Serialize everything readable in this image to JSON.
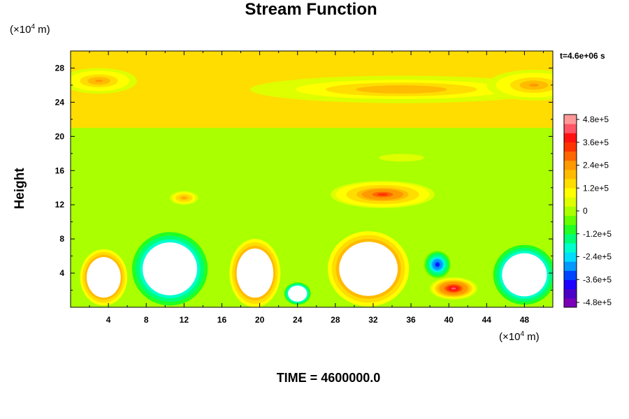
{
  "chart_data": {
    "type": "heatmap",
    "title": "Stream Function",
    "ylabel": "Height",
    "x_unit": {
      "prefix": "(×10",
      "exp": "4",
      "suffix": " m)"
    },
    "y_unit": {
      "prefix": "(×10",
      "exp": "4",
      "suffix": " m)"
    },
    "xlim": [
      0,
      51
    ],
    "ylim": [
      0,
      30
    ],
    "xticks": [
      4,
      8,
      12,
      16,
      20,
      24,
      28,
      32,
      36,
      40,
      44,
      48
    ],
    "yticks": [
      4,
      8,
      12,
      16,
      20,
      24,
      28
    ],
    "time_annotation": "t=4.6e+06 s",
    "colorbar": {
      "min": -480000,
      "max": 480000,
      "labels": [
        "4.8e+5",
        "3.6e+5",
        "2.4e+5",
        "1.2e+5",
        "0",
        "-1.2e+5",
        "-2.4e+5",
        "-3.6e+5",
        "-4.8e+5"
      ],
      "colors": [
        "#7a00b8",
        "#4b00c8",
        "#1d00ff",
        "#0044ff",
        "#0099ff",
        "#00ddff",
        "#00ffcc",
        "#00ff77",
        "#22ff22",
        "#66ff00",
        "#aaff00",
        "#ddff00",
        "#ffff00",
        "#ffdd00",
        "#ffbb00",
        "#ff9900",
        "#ff6600",
        "#ff3300",
        "#ff1111",
        "#ff5566",
        "#ff9999"
      ]
    },
    "background_value": 0,
    "features": [
      {
        "x": 3.5,
        "y": 3.5,
        "rx": 2.5,
        "ry": 3.3,
        "value": 480000,
        "saturated": true
      },
      {
        "x": 10.5,
        "y": 4.5,
        "rx": 4.0,
        "ry": 4.3,
        "value": -480000,
        "saturated": true
      },
      {
        "x": 19.5,
        "y": 4.0,
        "rx": 2.7,
        "ry": 4.0,
        "value": 480000,
        "saturated": true
      },
      {
        "x": 24.0,
        "y": 1.6,
        "rx": 1.4,
        "ry": 1.3,
        "value": -480000,
        "saturated": true
      },
      {
        "x": 31.5,
        "y": 4.5,
        "rx": 4.3,
        "ry": 4.4,
        "value": 480000,
        "saturated": true
      },
      {
        "x": 48.0,
        "y": 3.8,
        "rx": 3.3,
        "ry": 3.5,
        "value": -480000,
        "saturated": true
      },
      {
        "x": 38.8,
        "y": 5.0,
        "rx": 1.4,
        "ry": 1.6,
        "value": -360000,
        "saturated": false
      },
      {
        "x": 40.5,
        "y": 2.2,
        "rx": 2.5,
        "ry": 1.3,
        "value": 400000,
        "saturated": false
      },
      {
        "x": 33.0,
        "y": 13.2,
        "rx": 5.5,
        "ry": 1.6,
        "value": 300000,
        "saturated": false
      },
      {
        "x": 12.0,
        "y": 12.8,
        "rx": 1.5,
        "ry": 0.8,
        "value": 220000,
        "saturated": false
      },
      {
        "x": 35.0,
        "y": 25.5,
        "rx": 16,
        "ry": 1.6,
        "value": 200000,
        "saturated": false
      },
      {
        "x": 3.0,
        "y": 26.5,
        "rx": 4,
        "ry": 1.5,
        "value": 210000,
        "saturated": false
      },
      {
        "x": 49.0,
        "y": 26.0,
        "rx": 5,
        "ry": 1.8,
        "value": 210000,
        "saturated": false
      },
      {
        "x": 20.0,
        "y": 16.3,
        "rx": 14,
        "ry": 1.5,
        "value": 20000,
        "saturated": false
      },
      {
        "x": 35.0,
        "y": 17.5,
        "rx": 8,
        "ry": 1.5,
        "value": 30000,
        "saturated": false
      }
    ]
  },
  "footer": {
    "time_label": "TIME = 4600000.0"
  }
}
